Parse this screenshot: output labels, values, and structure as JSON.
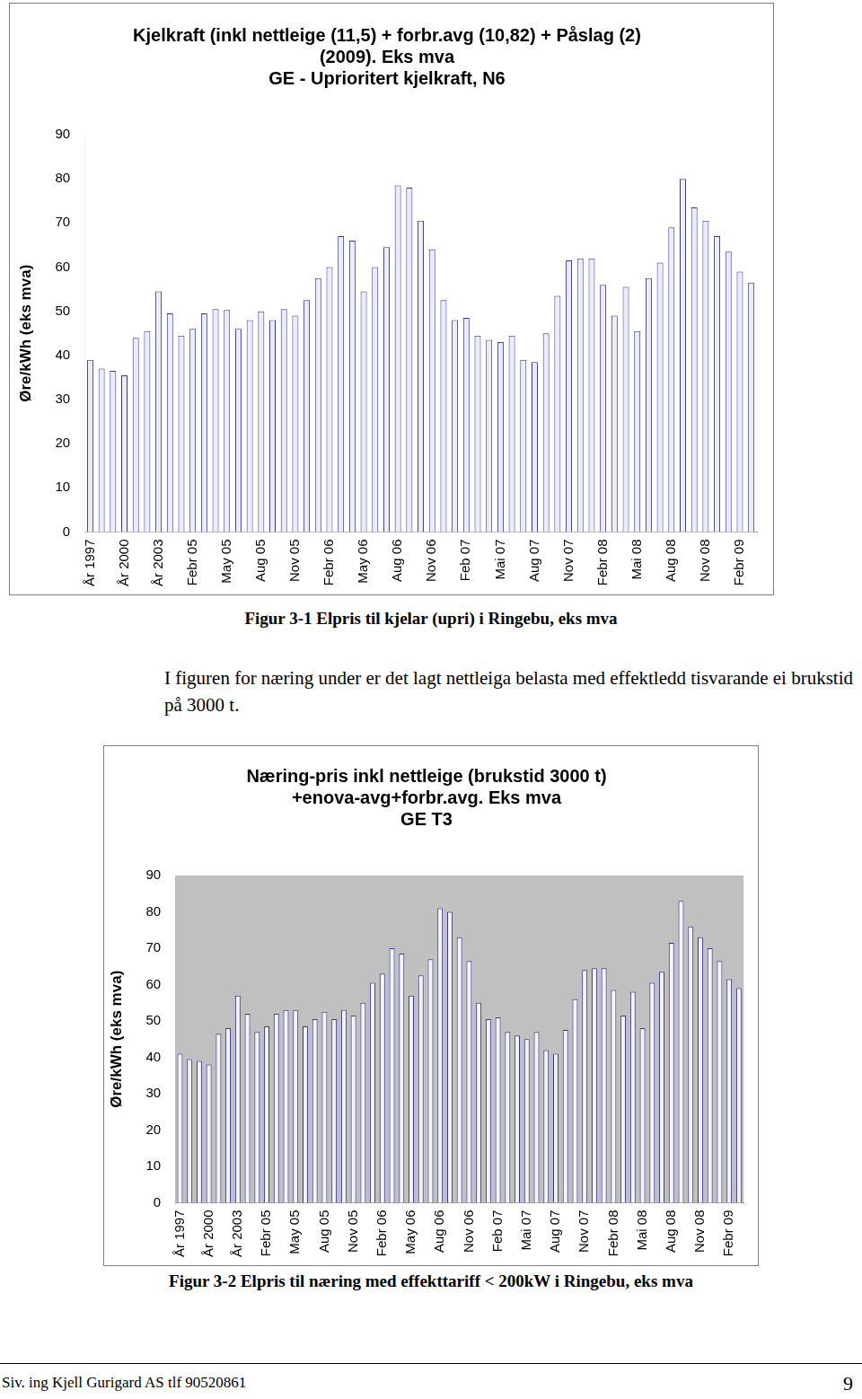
{
  "chart_data": [
    {
      "type": "bar",
      "title": [
        "Kjelkraft (inkl nettleige (11,5) + forbr.avg (10,82) + Påslag (2)",
        "(2009). Eks mva",
        "GE - Uprioritert kjelkraft, N6"
      ],
      "y_label": "Øre/kWh (eks mva)",
      "categories": [
        "År 1997",
        null,
        null,
        "År 2000",
        null,
        null,
        "År 2003",
        null,
        null,
        "Febr 05",
        null,
        null,
        "May 05",
        null,
        null,
        "Aug 05",
        null,
        null,
        "Nov 05",
        null,
        null,
        "Febr 06",
        null,
        null,
        "May 06",
        null,
        null,
        "Aug 06",
        null,
        null,
        "Nov 06",
        null,
        null,
        "Feb 07",
        null,
        null,
        "Mai 07",
        null,
        null,
        "Aug 07",
        null,
        null,
        "Nov 07",
        null,
        null,
        "Febr 08",
        null,
        null,
        "Mai 08",
        null,
        null,
        "Aug 08",
        null,
        null,
        "Nov 08",
        null,
        null,
        "Febr 09",
        null
      ],
      "values": [
        39,
        37,
        36.5,
        35.5,
        44,
        45.5,
        54.5,
        49.5,
        44.5,
        46,
        49.5,
        50.5,
        50.3,
        46,
        48,
        50,
        48,
        50.5,
        49,
        52.5,
        57.5,
        60,
        67,
        66,
        54.5,
        60,
        64.5,
        78.5,
        78,
        70.5,
        64,
        52.5,
        48,
        48.5,
        44.5,
        43.5,
        43,
        44.5,
        39,
        38.5,
        45,
        53.5,
        61.5,
        62,
        62,
        56,
        49,
        55.5,
        45.5,
        57.5,
        61,
        69,
        80,
        73.5,
        70.5,
        67,
        63.5,
        59,
        56.5
      ],
      "color": "#333399",
      "ylim": [
        0,
        90
      ],
      "yticks": [
        0,
        10,
        20,
        30,
        40,
        50,
        60,
        70,
        80,
        90
      ],
      "grid": false
    },
    {
      "type": "bar",
      "title": [
        "Næring-pris inkl nettleige (brukstid 3000 t)",
        "+enova-avg+forbr.avg. Eks mva",
        "GE T3"
      ],
      "y_label": "Øre/kWh (eks mva)",
      "categories": [
        "År 1997",
        null,
        null,
        "År 2000",
        null,
        null,
        "År 2003",
        null,
        null,
        "Febr 05",
        null,
        null,
        "May 05",
        null,
        null,
        "Aug 05",
        null,
        null,
        "Nov 05",
        null,
        null,
        "Febr 06",
        null,
        null,
        "May 06",
        null,
        null,
        "Aug 06",
        null,
        null,
        "Nov 06",
        null,
        null,
        "Feb 07",
        null,
        null,
        "Mai 07",
        null,
        null,
        "Aug 07",
        null,
        null,
        "Nov 07",
        null,
        null,
        "Febr 08",
        null,
        null,
        "Mai 08",
        null,
        null,
        "Aug 08",
        null,
        null,
        "Nov 08",
        null,
        null,
        "Febr 09",
        null
      ],
      "values": [
        41,
        39.5,
        39,
        38,
        46.5,
        48,
        57,
        52,
        47,
        48.5,
        52,
        53,
        53,
        48.5,
        50.5,
        52.5,
        50.5,
        53,
        51.5,
        55,
        60.5,
        63,
        70,
        68.5,
        57,
        62.5,
        67,
        81,
        80,
        73,
        66.5,
        55,
        50.5,
        51,
        47,
        46,
        45,
        47,
        42,
        41,
        47.5,
        56,
        64,
        64.5,
        64.5,
        58.5,
        51.5,
        58,
        48,
        60.5,
        63.5,
        71.5,
        83,
        76,
        73,
        70,
        66.5,
        61.5,
        59
      ],
      "color": "#333399",
      "ylim": [
        0,
        90
      ],
      "yticks": [
        0,
        10,
        20,
        30,
        40,
        50,
        60,
        70,
        80,
        90
      ],
      "grid": false
    }
  ],
  "captions": [
    "Figur 3-1 Elpris til kjelar (upri) i Ringebu, eks mva",
    "Figur 3-2 Elpris til næring med effekttariff < 200kW i Ringebu, eks mva"
  ],
  "paragraph": "I figuren for  næring under  er det lagt nettleiga belasta med effektledd tisvarande ei brukstid på 3000 t.",
  "footer": {
    "left": "Siv. ing Kjell Gurigard AS   tlf 90520861",
    "page": "9"
  }
}
